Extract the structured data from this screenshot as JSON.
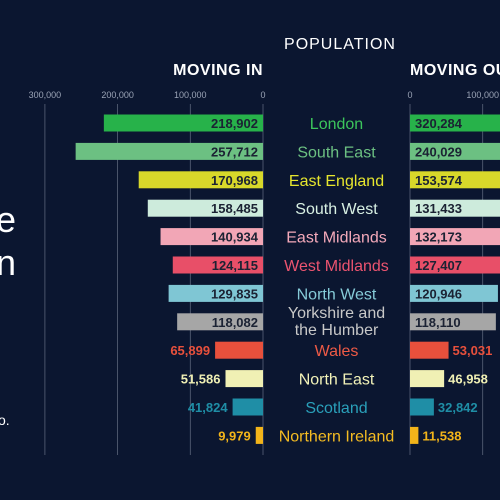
{
  "colors": {
    "background": "#0b1630",
    "axis": "#9aa3b5",
    "heading": "#ffffff",
    "side_text": "#ffffff"
  },
  "side_text": {
    "partial_1": "e",
    "partial_2": "n",
    "partial_3": "o."
  },
  "chart_data": {
    "type": "bar",
    "title": "POPULATION",
    "panels": [
      {
        "name": "MOVING IN",
        "direction": "left",
        "ticks": [
          300000,
          200000,
          100000,
          0
        ],
        "tick_labels": [
          "300,000",
          "200,000",
          "100,000",
          "0"
        ]
      },
      {
        "name": "MOVING OUT",
        "direction": "right",
        "ticks": [
          0,
          100000
        ],
        "tick_labels": [
          "0",
          "100,000"
        ]
      }
    ],
    "regions": [
      {
        "name": "London",
        "in": 218902,
        "out": 320284,
        "in_label": "218,902",
        "out_label": "320,284",
        "color": "#27b24a",
        "text_color": "#3cc55c",
        "label_inside": true
      },
      {
        "name": "South East",
        "in": 257712,
        "out": 240029,
        "in_label": "257,712",
        "out_label": "240,029",
        "color": "#6cc082",
        "text_color": "#6cc082",
        "label_inside": true
      },
      {
        "name": "East England",
        "in": 170968,
        "out": 153574,
        "in_label": "170,968",
        "out_label": "153,574",
        "color": "#d8d82a",
        "text_color": "#e6e62e",
        "label_inside": true
      },
      {
        "name": "South West",
        "in": 158485,
        "out": 131433,
        "in_label": "158,485",
        "out_label": "131,433",
        "color": "#cdebdc",
        "text_color": "#d8f0e3",
        "label_inside": true
      },
      {
        "name": "East Midlands",
        "in": 140934,
        "out": 132173,
        "in_label": "140,934",
        "out_label": "132,173",
        "color": "#f2a6b6",
        "text_color": "#f4a9ba",
        "label_inside": true
      },
      {
        "name": "West Midlands",
        "in": 124115,
        "out": 127407,
        "in_label": "124,115",
        "out_label": "127,407",
        "color": "#e84f68",
        "text_color": "#ec5470",
        "label_inside": true
      },
      {
        "name": "North West",
        "in": 129835,
        "out": 120946,
        "in_label": "129,835",
        "out_label": "120,946",
        "color": "#7fc6d4",
        "text_color": "#86cbd8",
        "label_inside": true
      },
      {
        "name": "Yorkshire and the Humber",
        "name_lines": [
          "Yorkshire and",
          "the Humber"
        ],
        "in": 118082,
        "out": 118110,
        "in_label": "118,082",
        "out_label": "118,110",
        "color": "#a6a6a6",
        "text_color": "#c8c8c8",
        "label_inside": true
      },
      {
        "name": "Wales",
        "in": 65899,
        "out": 53031,
        "in_label": "65,899",
        "out_label": "53,031",
        "color": "#e8503c",
        "text_color": "#ee5a46",
        "label_inside": false
      },
      {
        "name": "North East",
        "in": 51586,
        "out": 46958,
        "in_label": "51,586",
        "out_label": "46,958",
        "color": "#f0f0b4",
        "text_color": "#f2f2b8",
        "label_inside": false
      },
      {
        "name": "Scotland",
        "in": 41824,
        "out": 32842,
        "in_label": "41,824",
        "out_label": "32,842",
        "color": "#1f8ea6",
        "text_color": "#2aa0ba",
        "label_inside": false
      },
      {
        "name": "Northern Ireland",
        "in": 9979,
        "out": 11538,
        "in_label": "9,979",
        "out_label": "11,538",
        "color": "#f2b41a",
        "text_color": "#f5bc22",
        "label_inside": false
      }
    ]
  }
}
